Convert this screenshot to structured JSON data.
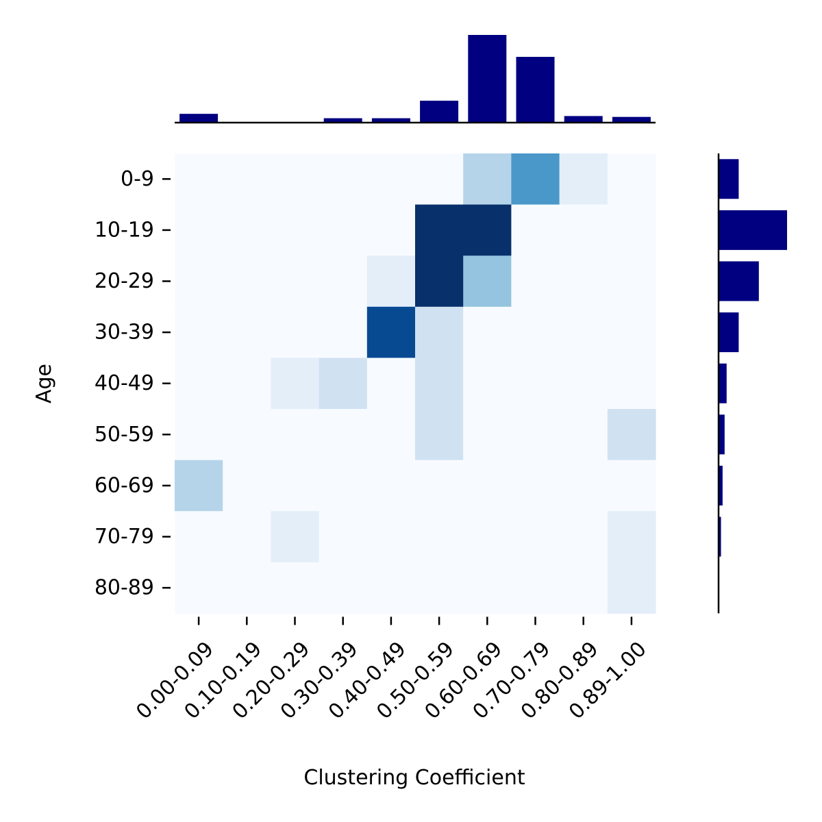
{
  "chart_data": {
    "type": "heatmap",
    "xlabel": "Clustering Coefficient",
    "ylabel": "Age",
    "x_categories": [
      "0.00-0.09",
      "0.10-0.19",
      "0.20-0.29",
      "0.30-0.39",
      "0.40-0.49",
      "0.50-0.59",
      "0.60-0.69",
      "0.70-0.79",
      "0.80-0.89",
      "0.89-1.00"
    ],
    "y_categories": [
      "0-9",
      "10-19",
      "20-29",
      "30-39",
      "40-49",
      "50-59",
      "60-69",
      "70-79",
      "80-89"
    ],
    "values": [
      [
        0,
        0,
        0,
        0,
        0,
        0,
        3,
        6,
        1,
        0
      ],
      [
        0,
        0,
        0,
        0,
        0,
        10,
        10,
        0,
        0,
        0
      ],
      [
        0,
        0,
        0,
        0,
        1,
        10,
        4,
        0,
        0,
        0
      ],
      [
        0,
        0,
        0,
        0,
        9,
        2,
        0,
        0,
        0,
        0
      ],
      [
        0,
        0,
        1,
        2,
        0,
        2,
        0,
        0,
        0,
        0
      ],
      [
        0,
        0,
        0,
        0,
        0,
        2,
        0,
        0,
        0,
        2
      ],
      [
        3,
        0,
        0,
        0,
        0,
        0,
        0,
        0,
        0,
        0
      ],
      [
        0,
        0,
        1,
        0,
        0,
        0,
        0,
        0,
        0,
        1
      ],
      [
        0,
        0,
        0,
        0,
        0,
        0,
        0,
        0,
        0,
        1
      ]
    ],
    "x_marginal": [
      2,
      0,
      0,
      1,
      1,
      5,
      20,
      15,
      1.5,
      1.3
    ],
    "y_marginal": [
      5,
      17,
      10,
      5,
      2,
      1.5,
      1,
      0.6,
      0
    ],
    "colormap": "Blues",
    "marginal_color": "#000080",
    "grid": false
  }
}
